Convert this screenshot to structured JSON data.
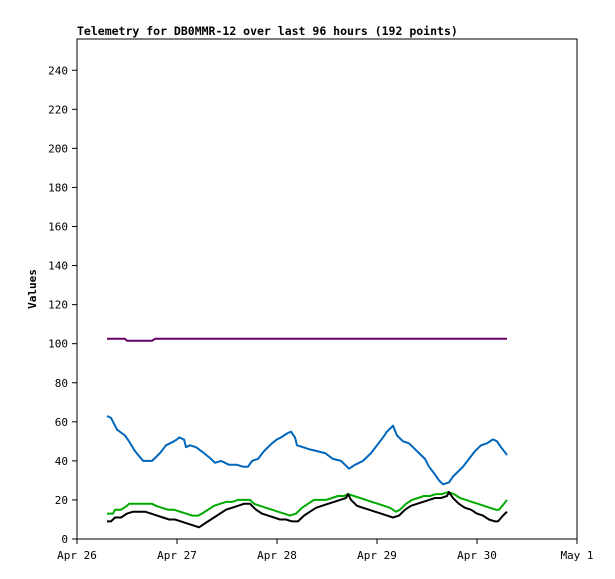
{
  "chart_data": {
    "type": "line",
    "title": "Telemetry for DB0MMR-12 over last 96 hours (192 points)",
    "xlabel": "",
    "ylabel": "Values",
    "ylim": [
      0,
      256
    ],
    "yticks": [
      0,
      20,
      40,
      60,
      80,
      100,
      120,
      140,
      160,
      180,
      200,
      220,
      240
    ],
    "xlim": [
      "2024-04-26 00:00",
      "2024-05-01 00:00"
    ],
    "xticks": [
      {
        "label": "Apr 26",
        "x": "2024-04-26 00:00"
      },
      {
        "label": "Apr 27",
        "x": "2024-04-27 00:00"
      },
      {
        "label": "Apr 28",
        "x": "2024-04-28 00:00"
      },
      {
        "label": "Apr 29",
        "x": "2024-04-29 00:00"
      },
      {
        "label": "Apr 30",
        "x": "2024-04-30 00:00"
      },
      {
        "label": "May 1",
        "x": "2024-05-01 00:00"
      }
    ],
    "grid": false,
    "legend": "none",
    "series": [
      {
        "color": "#660066",
        "points": [
          [
            "2024-04-26 07:12",
            102.5
          ],
          [
            "2024-04-26 11:31",
            102.5
          ],
          [
            "2024-04-26 12:00",
            101.5
          ],
          [
            "2024-04-26 18:00",
            101.5
          ],
          [
            "2024-04-26 18:43",
            102.5
          ],
          [
            "2024-04-30 07:12",
            102.5
          ]
        ]
      },
      {
        "color": "#0066bb",
        "points": [
          [
            "2024-04-26 07:12",
            63
          ],
          [
            "2024-04-26 08:10",
            62
          ],
          [
            "2024-04-26 09:36",
            56
          ],
          [
            "2024-04-26 11:31",
            53
          ],
          [
            "2024-04-26 12:29",
            50
          ],
          [
            "2024-04-26 13:55",
            45
          ],
          [
            "2024-04-26 15:50",
            40
          ],
          [
            "2024-04-26 18:00",
            40
          ],
          [
            "2024-04-26 19:55",
            44
          ],
          [
            "2024-04-26 21:22",
            48
          ],
          [
            "2024-04-26 23:17",
            50
          ],
          [
            "2024-04-27 00:00",
            51
          ],
          [
            "2024-04-27 00:29",
            52
          ],
          [
            "2024-04-27 01:41",
            51
          ],
          [
            "2024-04-27 02:10",
            47
          ],
          [
            "2024-04-27 03:07",
            48
          ],
          [
            "2024-04-27 04:34",
            47
          ],
          [
            "2024-04-27 06:29",
            44
          ],
          [
            "2024-04-27 08:10",
            41
          ],
          [
            "2024-04-27 09:07",
            39
          ],
          [
            "2024-04-27 10:34",
            40
          ],
          [
            "2024-04-27 11:31",
            39
          ],
          [
            "2024-04-27 12:29",
            38
          ],
          [
            "2024-04-27 14:24",
            38
          ],
          [
            "2024-04-27 15:50",
            37
          ],
          [
            "2024-04-27 17:02",
            37
          ],
          [
            "2024-04-27 18:00",
            40
          ],
          [
            "2024-04-27 19:26",
            41
          ],
          [
            "2024-04-27 20:53",
            45
          ],
          [
            "2024-04-27 22:48",
            49
          ],
          [
            "2024-04-28 00:00",
            51
          ],
          [
            "2024-04-28 00:58",
            52
          ],
          [
            "2024-04-28 02:24",
            54
          ],
          [
            "2024-04-28 03:22",
            55
          ],
          [
            "2024-04-28 04:19",
            52
          ],
          [
            "2024-04-28 04:48",
            48
          ],
          [
            "2024-04-28 06:14",
            47
          ],
          [
            "2024-04-28 07:41",
            46
          ],
          [
            "2024-04-28 09:36",
            45
          ],
          [
            "2024-04-28 11:31",
            44
          ],
          [
            "2024-04-28 13:26",
            41
          ],
          [
            "2024-04-28 15:22",
            40
          ],
          [
            "2024-04-28 16:48",
            37
          ],
          [
            "2024-04-28 17:17",
            36
          ],
          [
            "2024-04-28 18:43",
            38
          ],
          [
            "2024-04-28 20:38",
            40
          ],
          [
            "2024-04-28 22:34",
            44
          ],
          [
            "2024-04-29 00:00",
            48
          ],
          [
            "2024-04-29 01:26",
            52
          ],
          [
            "2024-04-29 02:24",
            55
          ],
          [
            "2024-04-29 03:50",
            58
          ],
          [
            "2024-04-29 04:48",
            53
          ],
          [
            "2024-04-29 06:14",
            50
          ],
          [
            "2024-04-29 07:41",
            49
          ],
          [
            "2024-04-29 08:38",
            47
          ],
          [
            "2024-04-29 10:05",
            44
          ],
          [
            "2024-04-29 11:31",
            41
          ],
          [
            "2024-04-29 12:29",
            37
          ],
          [
            "2024-04-29 13:55",
            33
          ],
          [
            "2024-04-29 14:53",
            30
          ],
          [
            "2024-04-29 15:50",
            28
          ],
          [
            "2024-04-29 17:17",
            29
          ],
          [
            "2024-04-29 18:14",
            32
          ],
          [
            "2024-04-29 19:12",
            34
          ],
          [
            "2024-04-29 20:38",
            37
          ],
          [
            "2024-04-29 22:05",
            41
          ],
          [
            "2024-04-29 23:31",
            45
          ],
          [
            "2024-04-30 00:58",
            48
          ],
          [
            "2024-04-30 02:24",
            49
          ],
          [
            "2024-04-30 03:50",
            51
          ],
          [
            "2024-04-30 04:48",
            50
          ],
          [
            "2024-04-30 05:46",
            47
          ],
          [
            "2024-04-30 07:12",
            43
          ]
        ]
      },
      {
        "color": "#00aa00",
        "points": [
          [
            "2024-04-26 07:12",
            13
          ],
          [
            "2024-04-26 08:38",
            13
          ],
          [
            "2024-04-26 09:07",
            15
          ],
          [
            "2024-04-26 10:34",
            15
          ],
          [
            "2024-04-26 12:00",
            17
          ],
          [
            "2024-04-26 12:29",
            18
          ],
          [
            "2024-04-26 18:00",
            18
          ],
          [
            "2024-04-26 18:58",
            17
          ],
          [
            "2024-04-26 20:24",
            16
          ],
          [
            "2024-04-26 21:50",
            15
          ],
          [
            "2024-04-26 23:17",
            15
          ],
          [
            "2024-04-27 00:43",
            14
          ],
          [
            "2024-04-27 02:10",
            13
          ],
          [
            "2024-04-27 03:36",
            12
          ],
          [
            "2024-04-27 05:02",
            12
          ],
          [
            "2024-04-27 06:00",
            13
          ],
          [
            "2024-04-27 07:26",
            15
          ],
          [
            "2024-04-27 08:53",
            17
          ],
          [
            "2024-04-27 10:19",
            18
          ],
          [
            "2024-04-27 11:46",
            19
          ],
          [
            "2024-04-27 13:12",
            19
          ],
          [
            "2024-04-27 14:38",
            20
          ],
          [
            "2024-04-27 16:05",
            20
          ],
          [
            "2024-04-27 17:31",
            20
          ],
          [
            "2024-04-27 18:29",
            18
          ],
          [
            "2024-04-27 19:55",
            17
          ],
          [
            "2024-04-27 21:22",
            16
          ],
          [
            "2024-04-27 22:48",
            15
          ],
          [
            "2024-04-28 00:14",
            14
          ],
          [
            "2024-04-28 01:41",
            13
          ],
          [
            "2024-04-28 03:07",
            12
          ],
          [
            "2024-04-28 04:34",
            13
          ],
          [
            "2024-04-28 06:00",
            16
          ],
          [
            "2024-04-28 07:26",
            18
          ],
          [
            "2024-04-28 08:53",
            20
          ],
          [
            "2024-04-28 10:19",
            20
          ],
          [
            "2024-04-28 11:46",
            20
          ],
          [
            "2024-04-28 13:12",
            21
          ],
          [
            "2024-04-28 14:38",
            22
          ],
          [
            "2024-04-28 16:05",
            22
          ],
          [
            "2024-04-28 17:02",
            23
          ],
          [
            "2024-04-28 18:29",
            22
          ],
          [
            "2024-04-28 19:55",
            21
          ],
          [
            "2024-04-28 21:22",
            20
          ],
          [
            "2024-04-28 22:48",
            19
          ],
          [
            "2024-04-29 00:14",
            18
          ],
          [
            "2024-04-29 01:41",
            17
          ],
          [
            "2024-04-29 03:07",
            16
          ],
          [
            "2024-04-29 04:34",
            14
          ],
          [
            "2024-04-29 05:31",
            15
          ],
          [
            "2024-04-29 06:58",
            18
          ],
          [
            "2024-04-29 08:24",
            20
          ],
          [
            "2024-04-29 09:50",
            21
          ],
          [
            "2024-04-29 11:17",
            22
          ],
          [
            "2024-04-29 12:43",
            22
          ],
          [
            "2024-04-29 14:10",
            23
          ],
          [
            "2024-04-29 15:36",
            23
          ],
          [
            "2024-04-29 17:02",
            24
          ],
          [
            "2024-04-29 18:29",
            23
          ],
          [
            "2024-04-29 19:55",
            21
          ],
          [
            "2024-04-29 21:22",
            20
          ],
          [
            "2024-04-29 22:48",
            19
          ],
          [
            "2024-04-30 00:14",
            18
          ],
          [
            "2024-04-30 01:41",
            17
          ],
          [
            "2024-04-30 03:07",
            16
          ],
          [
            "2024-04-30 04:34",
            15
          ],
          [
            "2024-04-30 05:17",
            15
          ],
          [
            "2024-04-30 06:29",
            18
          ],
          [
            "2024-04-30 07:12",
            20
          ]
        ]
      },
      {
        "color": "#000000",
        "points": [
          [
            "2024-04-26 07:12",
            9
          ],
          [
            "2024-04-26 08:10",
            9
          ],
          [
            "2024-04-26 09:07",
            11
          ],
          [
            "2024-04-26 10:34",
            11
          ],
          [
            "2024-04-26 12:00",
            13
          ],
          [
            "2024-04-26 13:26",
            14
          ],
          [
            "2024-04-26 14:53",
            14
          ],
          [
            "2024-04-26 16:19",
            14
          ],
          [
            "2024-04-26 17:46",
            13
          ],
          [
            "2024-04-26 19:12",
            12
          ],
          [
            "2024-04-26 20:38",
            11
          ],
          [
            "2024-04-26 22:05",
            10
          ],
          [
            "2024-04-26 23:31",
            10
          ],
          [
            "2024-04-27 00:58",
            9
          ],
          [
            "2024-04-27 02:24",
            8
          ],
          [
            "2024-04-27 03:50",
            7
          ],
          [
            "2024-04-27 05:17",
            6
          ],
          [
            "2024-04-27 06:00",
            7
          ],
          [
            "2024-04-27 07:26",
            9
          ],
          [
            "2024-04-27 08:53",
            11
          ],
          [
            "2024-04-27 10:19",
            13
          ],
          [
            "2024-04-27 11:46",
            15
          ],
          [
            "2024-04-27 13:12",
            16
          ],
          [
            "2024-04-27 14:38",
            17
          ],
          [
            "2024-04-27 16:05",
            18
          ],
          [
            "2024-04-27 17:31",
            18
          ],
          [
            "2024-04-27 18:58",
            15
          ],
          [
            "2024-04-27 20:24",
            13
          ],
          [
            "2024-04-27 21:50",
            12
          ],
          [
            "2024-04-27 23:17",
            11
          ],
          [
            "2024-04-28 00:43",
            10
          ],
          [
            "2024-04-28 02:10",
            10
          ],
          [
            "2024-04-28 03:36",
            9
          ],
          [
            "2024-04-28 05:02",
            9
          ],
          [
            "2024-04-28 06:29",
            12
          ],
          [
            "2024-04-28 07:55",
            14
          ],
          [
            "2024-04-28 09:22",
            16
          ],
          [
            "2024-04-28 10:48",
            17
          ],
          [
            "2024-04-28 12:14",
            18
          ],
          [
            "2024-04-28 13:41",
            19
          ],
          [
            "2024-04-28 15:07",
            20
          ],
          [
            "2024-04-28 16:34",
            21
          ],
          [
            "2024-04-28 17:02",
            23
          ],
          [
            "2024-04-28 17:46",
            20
          ],
          [
            "2024-04-28 19:12",
            17
          ],
          [
            "2024-04-28 20:38",
            16
          ],
          [
            "2024-04-28 22:05",
            15
          ],
          [
            "2024-04-28 23:31",
            14
          ],
          [
            "2024-04-29 00:58",
            13
          ],
          [
            "2024-04-29 02:24",
            12
          ],
          [
            "2024-04-29 03:50",
            11
          ],
          [
            "2024-04-29 05:17",
            12
          ],
          [
            "2024-04-29 06:43",
            15
          ],
          [
            "2024-04-29 08:10",
            17
          ],
          [
            "2024-04-29 09:36",
            18
          ],
          [
            "2024-04-29 11:02",
            19
          ],
          [
            "2024-04-29 12:29",
            20
          ],
          [
            "2024-04-29 13:55",
            21
          ],
          [
            "2024-04-29 15:22",
            21
          ],
          [
            "2024-04-29 16:48",
            22
          ],
          [
            "2024-04-29 17:17",
            24
          ],
          [
            "2024-04-29 18:14",
            21
          ],
          [
            "2024-04-29 19:40",
            18
          ],
          [
            "2024-04-29 21:07",
            16
          ],
          [
            "2024-04-29 22:34",
            15
          ],
          [
            "2024-04-30 00:00",
            13
          ],
          [
            "2024-04-30 01:26",
            12
          ],
          [
            "2024-04-30 02:53",
            10
          ],
          [
            "2024-04-30 04:19",
            9
          ],
          [
            "2024-04-30 05:02",
            9
          ],
          [
            "2024-04-30 06:14",
            12
          ],
          [
            "2024-04-30 07:12",
            14
          ]
        ]
      }
    ]
  }
}
